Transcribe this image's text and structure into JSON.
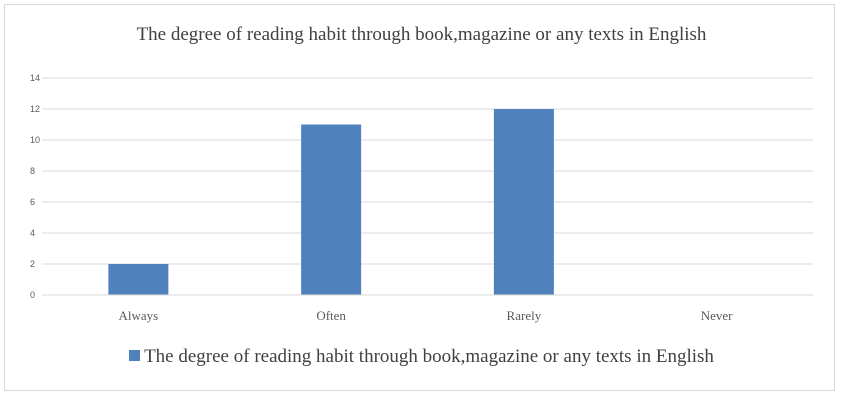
{
  "chart_data": {
    "type": "bar",
    "title": "The degree of reading habit through book,magazine or any texts in English",
    "categories": [
      "Always",
      "Often",
      "Rarely",
      "Never"
    ],
    "series": [
      {
        "name": "The degree of reading habit through book,magazine or any texts in English",
        "values": [
          2,
          11,
          12,
          0
        ],
        "color": "#4f81bd"
      }
    ],
    "yticks": [
      "0",
      "2",
      "4",
      "6",
      "8",
      "10",
      "12",
      "14"
    ],
    "ylim": [
      0,
      14
    ],
    "grid": true,
    "legend_position": "bottom"
  }
}
